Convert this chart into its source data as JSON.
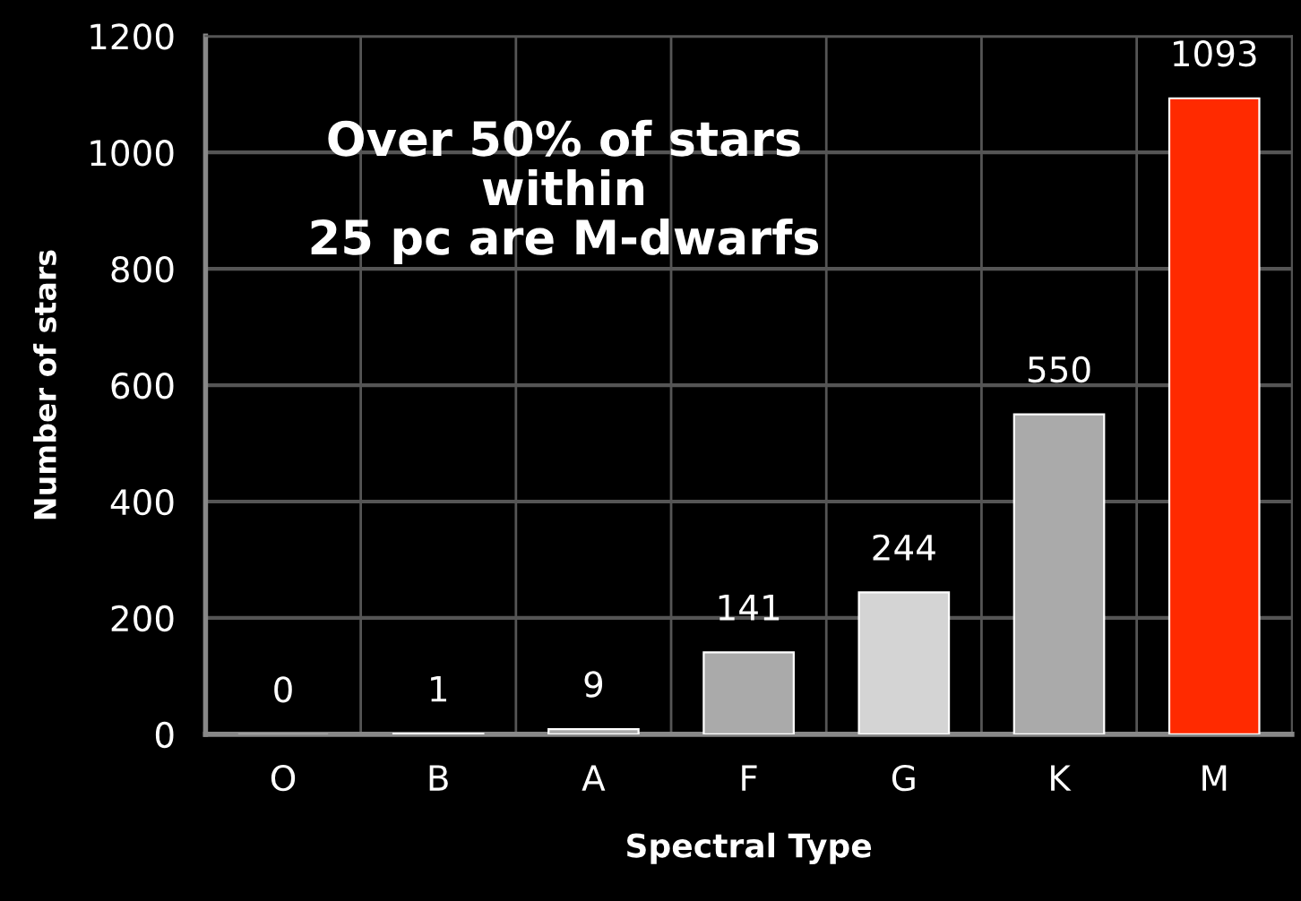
{
  "chart_data": {
    "type": "bar",
    "xlabel": "Spectral Type",
    "ylabel": "Number of stars",
    "categories": [
      "O",
      "B",
      "A",
      "F",
      "G",
      "K",
      "M"
    ],
    "values": [
      0,
      1,
      9,
      141,
      244,
      550,
      1093
    ],
    "colors": [
      "#aaaaaa",
      "#aaaaaa",
      "#aaaaaa",
      "#aaaaaa",
      "#d4d4d4",
      "#aaaaaa",
      "#ff2a00"
    ],
    "ylim": [
      0,
      1200
    ],
    "yticks": [
      0,
      200,
      400,
      600,
      800,
      1000,
      1200
    ],
    "grid": true,
    "data_labels": true,
    "annotations": [
      "Over 50% of stars\nwithin\n25 pc are M-dwarfs"
    ]
  }
}
